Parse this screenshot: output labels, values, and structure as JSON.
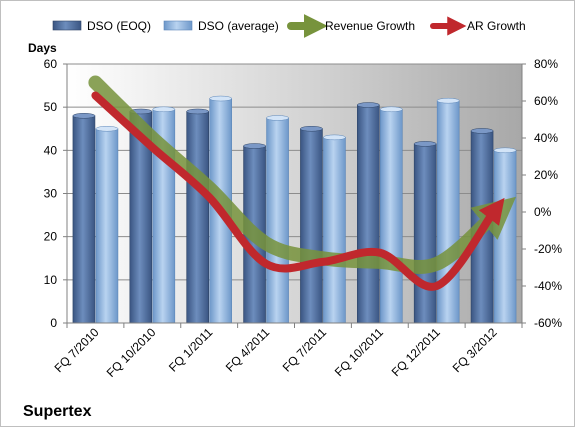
{
  "chart_data": {
    "type": "bar",
    "title": "Supertex",
    "ylabel": "Days",
    "ylim": [
      0,
      60
    ],
    "yticks": [
      0,
      10,
      20,
      30,
      40,
      50,
      60
    ],
    "y2lim": [
      -60,
      80
    ],
    "y2ticks": [
      "-60%",
      "-40%",
      "-20%",
      "0%",
      "20%",
      "40%",
      "60%",
      "80%"
    ],
    "y2tick_values": [
      -60,
      -40,
      -20,
      0,
      20,
      40,
      60,
      80
    ],
    "grid": true,
    "legend_position": "top",
    "categories": [
      "FQ 7/2010",
      "FQ 10/2010",
      "FQ 1/2011",
      "FQ 4/2011",
      "FQ 7/2011",
      "FQ 10/2011",
      "FQ 12/2011",
      "FQ 3/2012"
    ],
    "series": [
      {
        "name": "DSO (EOQ)",
        "type": "bar",
        "axis": "left",
        "color": "#4f6f9f",
        "values": [
          48,
          49,
          49,
          41,
          45,
          50.5,
          41.5,
          44.5
        ]
      },
      {
        "name": "DSO (average)",
        "type": "bar",
        "axis": "left",
        "color": "#8eb4e3",
        "values": [
          45,
          49.5,
          52,
          47.5,
          43,
          49.5,
          51.5,
          40
        ]
      },
      {
        "name": "Revenue Growth",
        "type": "line",
        "axis": "right",
        "color": "#77933c",
        "values": [
          70,
          40,
          13,
          -17,
          -25,
          -27,
          -28,
          -2
        ]
      },
      {
        "name": "AR Growth",
        "type": "line",
        "axis": "right",
        "color": "#c0282d",
        "values": [
          63,
          35,
          8,
          -28,
          -27,
          -22,
          -40,
          0
        ]
      }
    ]
  }
}
